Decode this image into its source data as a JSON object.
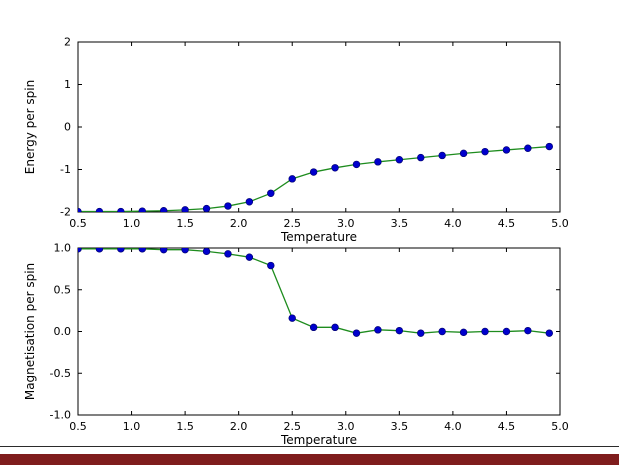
{
  "figure": {
    "background": "#ffffff",
    "divider_color": "#2b2b2b",
    "bottom_bar_color": "#7f1d1d",
    "axis_color": "#000000"
  },
  "chart_data": [
    {
      "type": "line",
      "title": "",
      "xlabel": "Temperature",
      "ylabel": "Energy per spin",
      "xlim": [
        0.5,
        5.0
      ],
      "ylim": [
        -2,
        2
      ],
      "grid": false,
      "legend": "none",
      "line_color": "#1e8c1e",
      "marker_color": "#0000cd",
      "marker_edge_color": "#00006b",
      "xtick_values": [
        0.5,
        1.0,
        1.5,
        2.0,
        2.5,
        3.0,
        3.5,
        4.0,
        4.5,
        5.0
      ],
      "xtick_labels": [
        "0.5",
        "1.0",
        "1.5",
        "2.0",
        "2.5",
        "3.0",
        "3.5",
        "4.0",
        "4.5",
        "5.0"
      ],
      "ytick_values": [
        -2,
        -1,
        0,
        1,
        2
      ],
      "ytick_labels": [
        "-2",
        "-1",
        "0",
        "1",
        "2"
      ],
      "x": [
        0.5,
        0.7,
        0.9,
        1.1,
        1.3,
        1.5,
        1.7,
        1.9,
        2.1,
        2.3,
        2.5,
        2.7,
        2.9,
        3.1,
        3.3,
        3.5,
        3.7,
        3.9,
        4.1,
        4.3,
        4.5,
        4.7,
        4.9
      ],
      "y": [
        -1.99,
        -1.99,
        -1.99,
        -1.98,
        -1.97,
        -1.95,
        -1.92,
        -1.86,
        -1.76,
        -1.56,
        -1.22,
        -1.06,
        -0.96,
        -0.88,
        -0.82,
        -0.77,
        -0.72,
        -0.67,
        -0.62,
        -0.58,
        -0.54,
        -0.5,
        -0.46
      ]
    },
    {
      "type": "line",
      "title": "",
      "xlabel": "Temperature",
      "ylabel": "Magnetisation per spin",
      "xlim": [
        0.5,
        5.0
      ],
      "ylim": [
        -1.0,
        1.0
      ],
      "grid": false,
      "legend": "none",
      "line_color": "#1e8c1e",
      "marker_color": "#0000cd",
      "marker_edge_color": "#00006b",
      "xtick_values": [
        0.5,
        1.0,
        1.5,
        2.0,
        2.5,
        3.0,
        3.5,
        4.0,
        4.5,
        5.0
      ],
      "xtick_labels": [
        "0.5",
        "1.0",
        "1.5",
        "2.0",
        "2.5",
        "3.0",
        "3.5",
        "4.0",
        "4.5",
        "5.0"
      ],
      "ytick_values": [
        -1.0,
        -0.5,
        0.0,
        0.5,
        1.0
      ],
      "ytick_labels": [
        "-1.0",
        "-0.5",
        "0.0",
        "0.5",
        "1.0"
      ],
      "x": [
        0.5,
        0.7,
        0.9,
        1.1,
        1.3,
        1.5,
        1.7,
        1.9,
        2.1,
        2.3,
        2.5,
        2.7,
        2.9,
        3.1,
        3.3,
        3.5,
        3.7,
        3.9,
        4.1,
        4.3,
        4.5,
        4.7,
        4.9
      ],
      "y": [
        0.99,
        0.99,
        0.99,
        0.99,
        0.98,
        0.98,
        0.96,
        0.93,
        0.89,
        0.79,
        0.16,
        0.05,
        0.05,
        -0.02,
        0.02,
        0.01,
        -0.02,
        0.0,
        -0.01,
        0.0,
        0.0,
        0.01,
        -0.02
      ]
    }
  ]
}
